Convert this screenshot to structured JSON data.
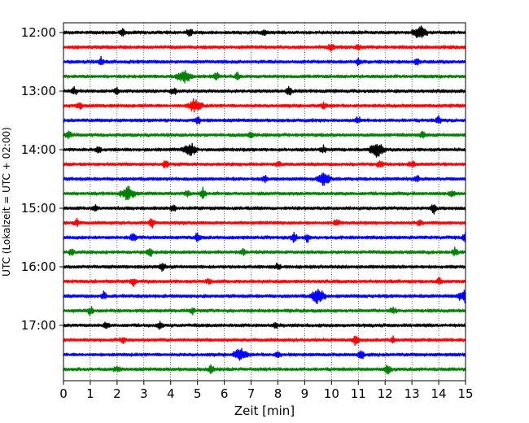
{
  "chart_data": {
    "type": "line",
    "title": "",
    "xlabel": "Zeit  [min]",
    "ylabel": "UTC (Lokalzeit = UTC + 02:00)",
    "xlim": [
      0,
      15
    ],
    "x_ticks": [
      0,
      1,
      2,
      3,
      4,
      5,
      6,
      7,
      8,
      9,
      10,
      11,
      12,
      13,
      14,
      15
    ],
    "y_ticks": [
      "12:00",
      "13:00",
      "14:00",
      "15:00",
      "16:00",
      "17:00"
    ],
    "trace_interval_min": 15,
    "grid": "vertical dotted at each minute",
    "trace_colors": [
      "#000000",
      "#ff0000",
      "#0000ff",
      "#008000"
    ],
    "traces": [
      {
        "start": "12:00",
        "color": "#000000",
        "events": [
          [
            2.2,
            0.5
          ],
          [
            4.7,
            0.7
          ],
          [
            7.5,
            0.4
          ],
          [
            13.3,
            0.8
          ]
        ]
      },
      {
        "start": "12:15",
        "color": "#ff0000",
        "events": [
          [
            10.0,
            0.6
          ],
          [
            11.0,
            0.4
          ]
        ]
      },
      {
        "start": "12:30",
        "color": "#0000ff",
        "events": [
          [
            1.4,
            0.5
          ],
          [
            11.0,
            0.4
          ],
          [
            13.2,
            0.4
          ]
        ]
      },
      {
        "start": "12:45",
        "color": "#008000",
        "events": [
          [
            4.5,
            1.0
          ],
          [
            5.7,
            0.6
          ],
          [
            6.5,
            0.5
          ]
        ]
      },
      {
        "start": "13:00",
        "color": "#000000",
        "events": [
          [
            0.4,
            0.5
          ],
          [
            2.0,
            0.4
          ],
          [
            4.1,
            0.5
          ],
          [
            8.4,
            0.7
          ]
        ]
      },
      {
        "start": "13:15",
        "color": "#ff0000",
        "events": [
          [
            0.6,
            0.6
          ],
          [
            4.9,
            0.9
          ],
          [
            9.7,
            0.4
          ]
        ]
      },
      {
        "start": "13:30",
        "color": "#0000ff",
        "events": [
          [
            5.0,
            0.5
          ],
          [
            11.0,
            0.4
          ],
          [
            14.0,
            0.5
          ]
        ]
      },
      {
        "start": "13:45",
        "color": "#008000",
        "events": [
          [
            0.2,
            0.5
          ],
          [
            7.0,
            0.4
          ],
          [
            13.4,
            0.4
          ]
        ]
      },
      {
        "start": "14:00",
        "color": "#000000",
        "events": [
          [
            1.3,
            0.5
          ],
          [
            4.7,
            0.8
          ],
          [
            9.7,
            0.4
          ],
          [
            11.7,
            1.0
          ]
        ]
      },
      {
        "start": "14:15",
        "color": "#ff0000",
        "events": [
          [
            3.8,
            0.5
          ],
          [
            8.0,
            0.4
          ],
          [
            11.8,
            0.5
          ],
          [
            13.0,
            0.4
          ]
        ]
      },
      {
        "start": "14:30",
        "color": "#0000ff",
        "events": [
          [
            7.5,
            0.4
          ],
          [
            9.7,
            0.8
          ],
          [
            13.2,
            0.4
          ]
        ]
      },
      {
        "start": "14:45",
        "color": "#008000",
        "events": [
          [
            2.4,
            0.9
          ],
          [
            4.6,
            0.4
          ],
          [
            5.2,
            0.7
          ],
          [
            14.5,
            0.4
          ]
        ]
      },
      {
        "start": "15:00",
        "color": "#000000",
        "events": [
          [
            1.2,
            0.4
          ],
          [
            4.1,
            0.5
          ],
          [
            13.8,
            0.7
          ]
        ]
      },
      {
        "start": "15:15",
        "color": "#ff0000",
        "events": [
          [
            0.5,
            0.5
          ],
          [
            3.3,
            0.7
          ],
          [
            10.2,
            0.5
          ],
          [
            13.3,
            0.4
          ]
        ]
      },
      {
        "start": "15:30",
        "color": "#0000ff",
        "events": [
          [
            2.6,
            0.6
          ],
          [
            5.0,
            0.5
          ],
          [
            8.6,
            0.6
          ],
          [
            9.1,
            0.5
          ],
          [
            15.0,
            0.7
          ]
        ]
      },
      {
        "start": "15:45",
        "color": "#008000",
        "events": [
          [
            0.3,
            0.5
          ],
          [
            3.2,
            0.7
          ],
          [
            6.7,
            0.4
          ],
          [
            14.6,
            0.5
          ]
        ]
      },
      {
        "start": "16:00",
        "color": "#000000",
        "events": [
          [
            3.7,
            0.5
          ],
          [
            8.0,
            0.5
          ]
        ]
      },
      {
        "start": "16:15",
        "color": "#ff0000",
        "events": [
          [
            2.6,
            0.6
          ],
          [
            5.4,
            0.4
          ],
          [
            14.0,
            0.5
          ]
        ]
      },
      {
        "start": "16:30",
        "color": "#0000ff",
        "events": [
          [
            1.5,
            0.5
          ],
          [
            9.5,
            1.0
          ],
          [
            15.0,
            0.9
          ]
        ]
      },
      {
        "start": "16:45",
        "color": "#008000",
        "events": [
          [
            1.0,
            0.5
          ],
          [
            4.8,
            0.4
          ],
          [
            12.3,
            0.5
          ]
        ]
      },
      {
        "start": "17:00",
        "color": "#000000",
        "events": [
          [
            1.6,
            0.4
          ],
          [
            3.6,
            0.4
          ],
          [
            7.9,
            0.4
          ]
        ]
      },
      {
        "start": "17:15",
        "color": "#ff0000",
        "events": [
          [
            2.2,
            0.4
          ],
          [
            10.9,
            0.6
          ],
          [
            12.3,
            0.4
          ]
        ]
      },
      {
        "start": "17:30",
        "color": "#0000ff",
        "events": [
          [
            6.6,
            0.8
          ],
          [
            8.0,
            0.4
          ],
          [
            11.1,
            0.6
          ]
        ]
      },
      {
        "start": "17:45",
        "color": "#008000",
        "events": [
          [
            2.0,
            0.4
          ],
          [
            5.5,
            0.6
          ],
          [
            12.1,
            0.7
          ]
        ]
      }
    ]
  }
}
